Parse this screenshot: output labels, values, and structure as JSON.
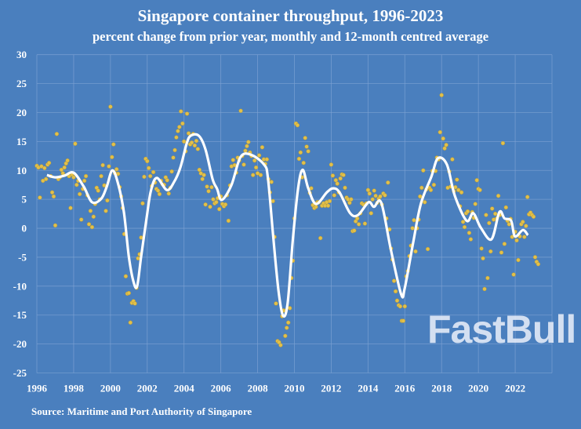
{
  "chart_data": {
    "type": "scatter+line",
    "title": "Singapore container throughput, 1996-2023",
    "subtitle": "percent change from prior year, monthly and 12-month centred average",
    "xlabel": "",
    "ylabel": "",
    "xlim": [
      1996,
      2024
    ],
    "ylim": [
      -25,
      30
    ],
    "x_ticks": [
      "1996",
      "1998",
      "2000",
      "2002",
      "2004",
      "2006",
      "2008",
      "2010",
      "2012",
      "2014",
      "2016",
      "2018",
      "2020",
      "2022"
    ],
    "y_ticks": [
      "30",
      "25",
      "20",
      "15",
      "10",
      "5",
      "0",
      "-5",
      "-10",
      "-15",
      "-20",
      "-25"
    ],
    "grid": true,
    "colors": {
      "background": "#4a7fbe",
      "points": "#e2c04a",
      "line": "#ffffff",
      "grid": "#7ea3d3"
    },
    "monthly": {
      "start_year": 1996,
      "values_by_year": [
        [
          10.8,
          10.5,
          5.3,
          10.7,
          8.2,
          10.4,
          8.5,
          11,
          11.3,
          9,
          6.2,
          5.5
        ],
        [
          0.5,
          16.3,
          8.5,
          8.8,
          10.1,
          9.5,
          10.5,
          11.2,
          11.7,
          9,
          3.5,
          9.3
        ],
        [
          8.8,
          14.6,
          7.5,
          8.2,
          5.9,
          1.5,
          6.8,
          8.2,
          9,
          5.7,
          0.7,
          3
        ],
        [
          0.2,
          2,
          4.2,
          7,
          6.5,
          5,
          9,
          10.9,
          7.4,
          3,
          4.8,
          10.7
        ],
        [
          21,
          12.3,
          14.5,
          9.5,
          10.2,
          9.4,
          7.1,
          5.5,
          3.5,
          -1,
          -8.3,
          -11.3
        ],
        [
          -11.2,
          -16.3,
          -12.9,
          -12.6,
          -13,
          -10.3,
          -5.2,
          -4.5,
          -1.6,
          4.3,
          8.9,
          12
        ],
        [
          11.6,
          10.4,
          9,
          7.3,
          9.7,
          7.9,
          6.8,
          6.5,
          5.9,
          8.2,
          7.6,
          7.5
        ],
        [
          8.8,
          8.3,
          6,
          7,
          9.8,
          12.2,
          13.5,
          15.7,
          16.8,
          17.5,
          20.2,
          18.1
        ],
        [
          15,
          13.3,
          19.8,
          16.4,
          14.5,
          14.8,
          16.3,
          14.3,
          15.1,
          13.7,
          10.1,
          9.5
        ],
        [
          8.5,
          9.2,
          4.1,
          7.2,
          6.4,
          3.7,
          7.1,
          5,
          4.3,
          4.5,
          5.2,
          3.3
        ],
        [
          5.5,
          4.2,
          3.8,
          4.1,
          5.7,
          1.3,
          7.4,
          10.7,
          11.8,
          10.9,
          9.6,
          12.2
        ],
        [
          11.7,
          20.3,
          12.5,
          11,
          13.4,
          14.2,
          14.9,
          13.1,
          12.5,
          9.2,
          11.7,
          10.5
        ],
        [
          9.5,
          12.6,
          9.2,
          14,
          11.9,
          11.1,
          11.9,
          8.5,
          6.2,
          8,
          4.7,
          -1.5
        ],
        [
          -13,
          -19.5,
          -19.7,
          -20.2,
          -15.2,
          -14.2,
          -18.6,
          -17.2,
          -16.3,
          -13.8,
          -8.6,
          -5.6
        ],
        [
          1.7,
          18.1,
          17.8,
          12,
          13.1,
          8.8,
          11.3,
          15.6,
          14.1,
          13.3,
          6.1,
          6.9
        ],
        [
          4,
          3.5,
          3.7,
          4.5,
          4.5,
          -1.7,
          3.9,
          4.3,
          3.9,
          4.5,
          3.9,
          4.7
        ],
        [
          11,
          9.1,
          5.7,
          8.3,
          7.7,
          6.2,
          8.6,
          9.3,
          9.2,
          7,
          5.3,
          5
        ],
        [
          4.4,
          5,
          -0.5,
          -0.4,
          1.2,
          1.7,
          0.7,
          2.6,
          4.3,
          4.1,
          0.8,
          4.3
        ],
        [
          6.6,
          6,
          2.6,
          5,
          6.5,
          5.6,
          4.4,
          5.1,
          5.5,
          4.1,
          6,
          5.7
        ],
        [
          1.7,
          7.9,
          -0.2,
          -3.5,
          -5.4,
          -9.1,
          -10.9,
          -12.5,
          -13.3,
          -13.5,
          -16,
          -16
        ],
        [
          -13.5,
          -8.3,
          -7.4,
          -4.8,
          -3,
          0,
          1.4,
          -4,
          0,
          1.5,
          5.5,
          7
        ],
        [
          10,
          4.5,
          6.7,
          -3.6,
          7,
          6.6,
          9.9,
          7.5,
          9.9,
          12.2,
          11.9,
          16.6
        ],
        [
          23,
          15.5,
          13.8,
          14.4,
          7,
          9.8,
          7.2,
          11.9,
          6.4,
          7.1,
          8.4,
          6.6
        ],
        [
          3.8,
          6.2,
          1.1,
          0.2,
          2.6,
          2.9,
          -0.8,
          -1.9,
          2.8,
          1.8,
          4.2,
          8.3
        ],
        [
          6.8,
          6.6,
          -3.5,
          -5.2,
          -10.5,
          2.3,
          -8.6,
          0.9,
          -4,
          3.4,
          1.5,
          2.5
        ],
        [
          1.7,
          5.6,
          2.3,
          -4.2,
          14.7,
          -2.7,
          3.6,
          1.3,
          0.7,
          1.6,
          -1.5,
          -8
        ],
        [
          -0.6,
          -2.1,
          -5.5,
          -1.4,
          0.7,
          1.1,
          -1.5,
          0.4,
          5.4,
          2.4,
          2.7,
          2.3
        ],
        [
          2.0,
          -5,
          -5.8,
          -6.2
        ]
      ]
    },
    "average_12m_centred": [
      [
        1996.55,
        9.2
      ],
      [
        1997.0,
        8.8
      ],
      [
        1997.5,
        9.1
      ],
      [
        1998.0,
        9.6
      ],
      [
        1998.55,
        7.2
      ],
      [
        1999.0,
        4.5
      ],
      [
        1999.5,
        5.1
      ],
      [
        1999.8,
        7.2
      ],
      [
        2000.1,
        10
      ],
      [
        2000.4,
        7.9
      ],
      [
        2000.73,
        2.8
      ],
      [
        2001.0,
        -4.9
      ],
      [
        2001.25,
        -9.2
      ],
      [
        2001.45,
        -10
      ],
      [
        2001.67,
        -4.9
      ],
      [
        2001.97,
        1.9
      ],
      [
        2002.2,
        6.5
      ],
      [
        2002.52,
        8.7
      ],
      [
        2003.07,
        6.6
      ],
      [
        2003.46,
        8
      ],
      [
        2003.8,
        10.5
      ],
      [
        2004.14,
        14.6
      ],
      [
        2004.36,
        16
      ],
      [
        2004.8,
        16
      ],
      [
        2005.16,
        13.7
      ],
      [
        2005.55,
        8.5
      ],
      [
        2005.8,
        6.8
      ],
      [
        2006.05,
        4.9
      ],
      [
        2006.57,
        7.4
      ],
      [
        2007.07,
        12.3
      ],
      [
        2007.64,
        12.7
      ],
      [
        2008.35,
        11
      ],
      [
        2008.56,
        8.7
      ],
      [
        2008.84,
        -1.2
      ],
      [
        2009.13,
        -10.7
      ],
      [
        2009.38,
        -15.1
      ],
      [
        2009.63,
        -13
      ],
      [
        2009.91,
        -2.1
      ],
      [
        2010.2,
        6.9
      ],
      [
        2010.45,
        10.1
      ],
      [
        2010.75,
        6.9
      ],
      [
        2011.17,
        4.2
      ],
      [
        2011.76,
        6.2
      ],
      [
        2012.1,
        6.9
      ],
      [
        2012.45,
        6.2
      ],
      [
        2013.03,
        2.6
      ],
      [
        2013.46,
        2.3
      ],
      [
        2014.03,
        4.5
      ],
      [
        2014.32,
        3.7
      ],
      [
        2014.72,
        4.4
      ],
      [
        2015.23,
        -3.5
      ],
      [
        2015.8,
        -11.4
      ],
      [
        2016.0,
        -10.3
      ],
      [
        2016.45,
        -2.6
      ],
      [
        2016.87,
        4.2
      ],
      [
        2017.44,
        8.9
      ],
      [
        2017.8,
        12.1
      ],
      [
        2018.29,
        11
      ],
      [
        2018.72,
        5.6
      ],
      [
        2019.36,
        1.3
      ],
      [
        2019.72,
        2.6
      ],
      [
        2020.13,
        0.1
      ],
      [
        2020.71,
        -1.9
      ],
      [
        2021.14,
        2.8
      ],
      [
        2021.42,
        1.7
      ],
      [
        2021.78,
        1.3
      ],
      [
        2021.99,
        -1.4
      ],
      [
        2022.42,
        -0.3
      ],
      [
        2022.69,
        -1.2
      ]
    ]
  },
  "source": "Source: Maritime and Port Authority of Singapore",
  "watermark": "FastBull"
}
